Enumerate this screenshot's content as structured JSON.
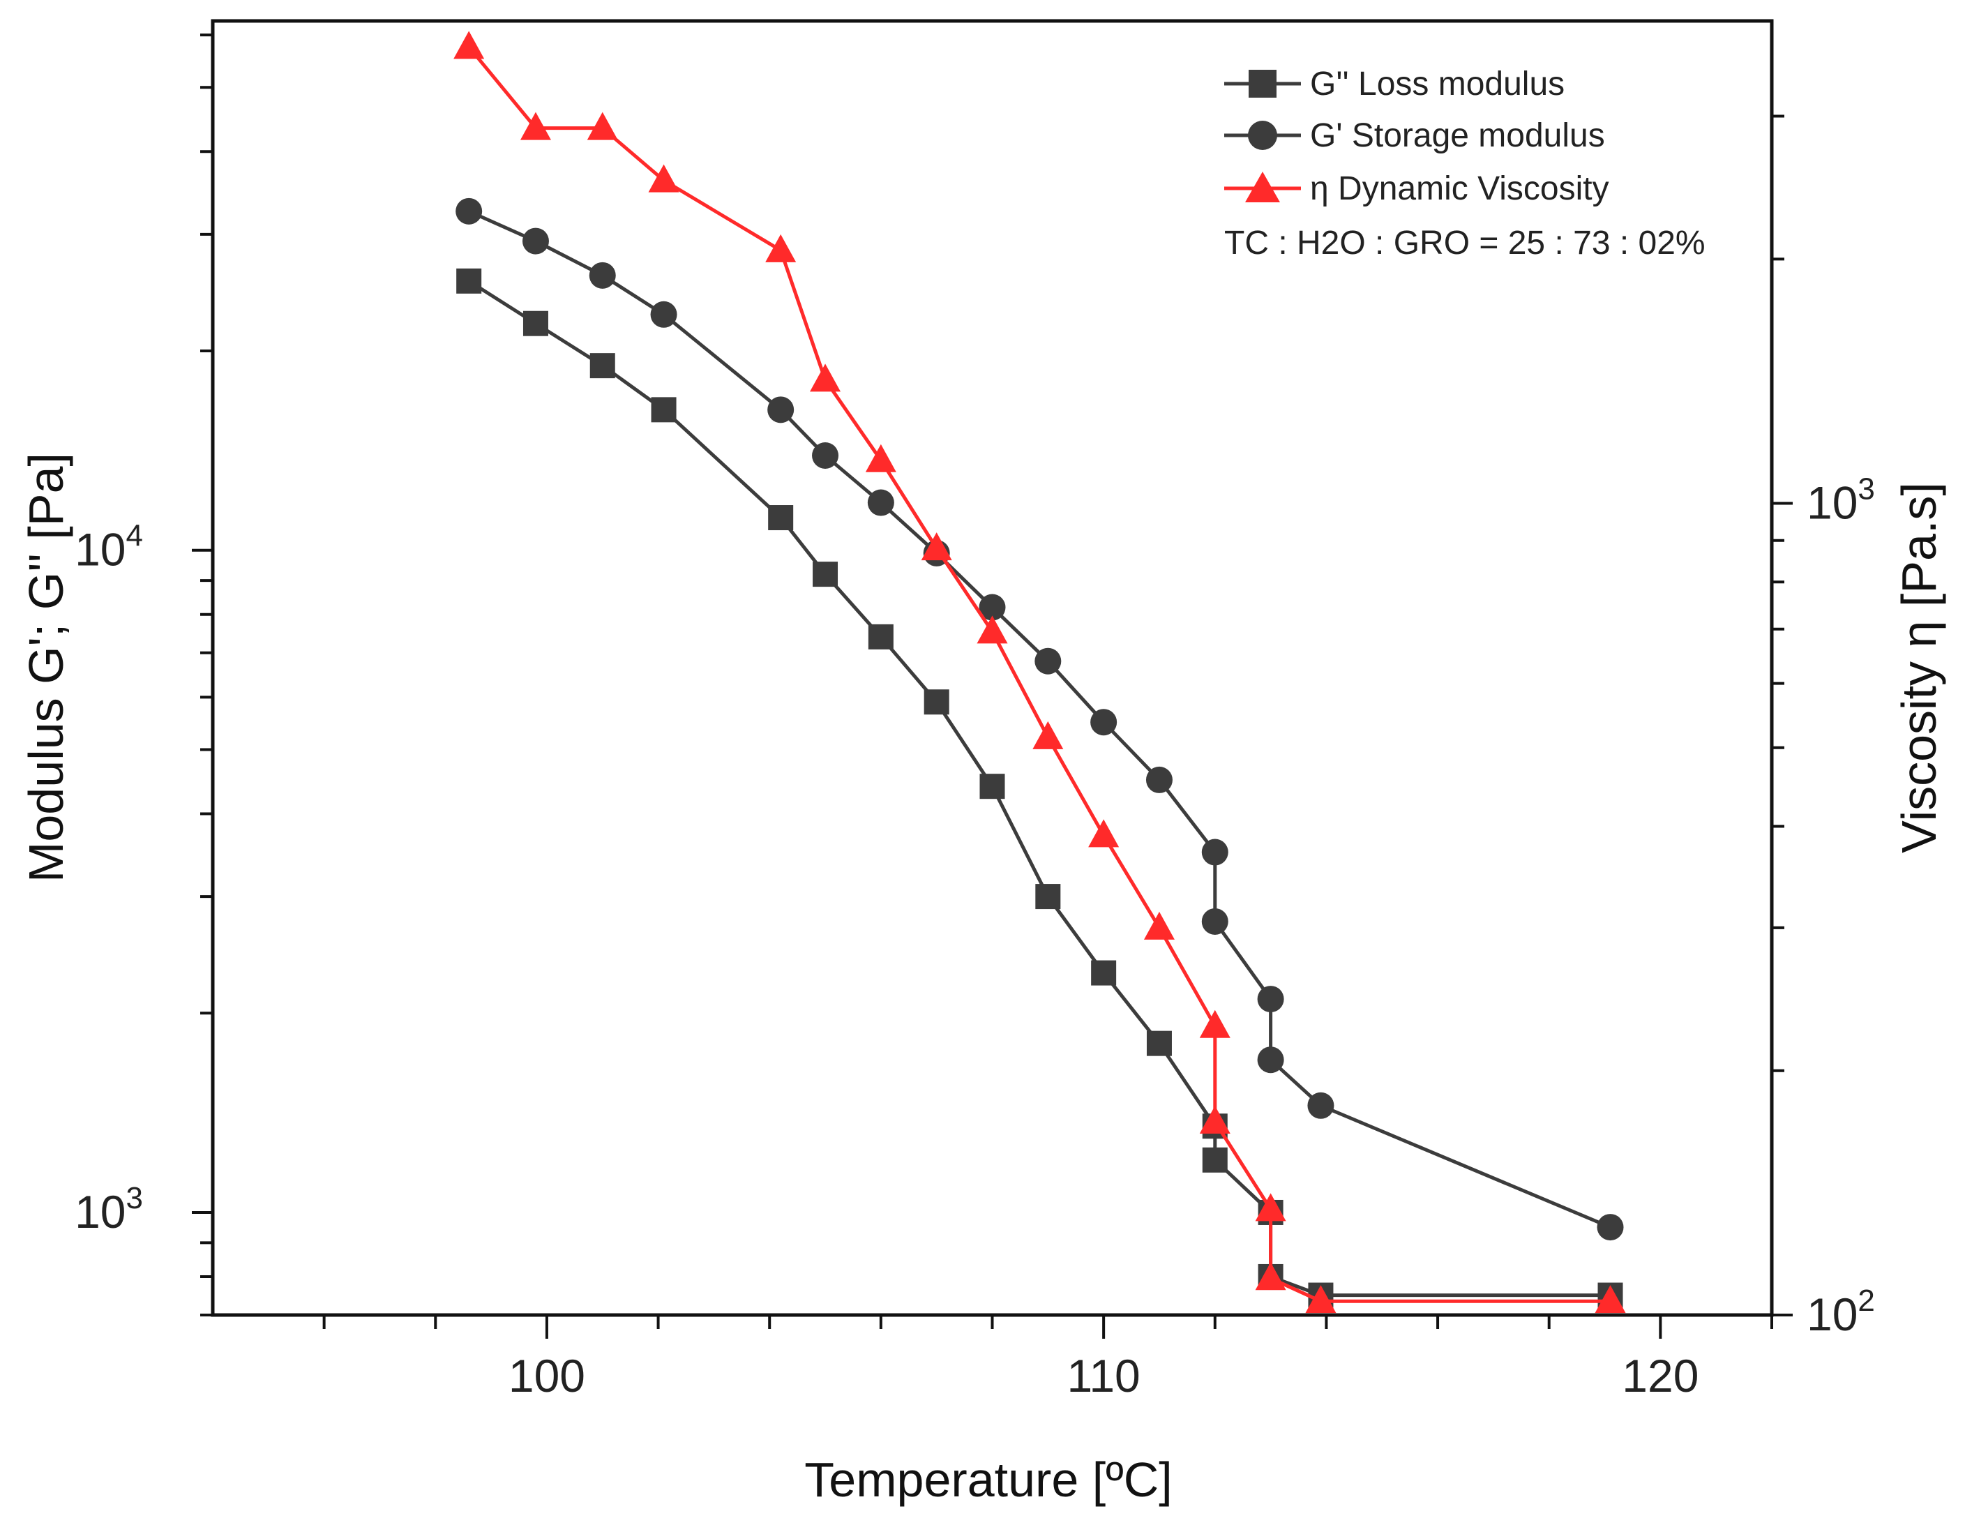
{
  "chart_data": {
    "type": "line",
    "xlabel": "Temperature [ºC]",
    "ylabel_left": "Modulus G'; G'' [Pa]",
    "ylabel_right": "Viscosity η  [Pa.s]",
    "xlim": [
      94,
      122
    ],
    "ylim_left": [
      700,
      63000
    ],
    "ylim_right": [
      100,
      3930
    ],
    "yscale": "log",
    "x_ticks": [
      100,
      110,
      120
    ],
    "x_tick_labels": [
      "100",
      "110",
      "120"
    ],
    "y_left_ticks": [
      {
        "value": 1000,
        "base": "10",
        "exp": "3"
      },
      {
        "value": 10000,
        "base": "10",
        "exp": "4"
      }
    ],
    "y_right_ticks": [
      {
        "value": 100,
        "base": "10",
        "exp": "2"
      },
      {
        "value": 1000,
        "base": "10",
        "exp": "3"
      }
    ],
    "annotation": "TC : H2O : GRO = 25 : 73 : 02%",
    "series": [
      {
        "name": "G''  Loss modulus",
        "axis": "left",
        "marker": "square",
        "color": "#3c3c3c",
        "x": [
          98.6,
          99.8,
          101.0,
          102.1,
          104.2,
          105.0,
          106.0,
          107.0,
          108.0,
          109.0,
          110.0,
          111.0,
          112.0,
          112.0,
          113.0,
          113.0,
          113.9,
          119.1
        ],
        "y": [
          25500,
          22000,
          19000,
          16300,
          11200,
          9200,
          7400,
          5900,
          4400,
          3000,
          2300,
          1800,
          1350,
          1200,
          1000,
          800,
          750,
          750
        ]
      },
      {
        "name": "G'   Storage modulus",
        "axis": "left",
        "marker": "circle",
        "color": "#3c3c3c",
        "x": [
          98.6,
          99.8,
          101.0,
          102.1,
          104.2,
          105.0,
          106.0,
          107.0,
          108.0,
          109.0,
          110.0,
          111.0,
          112.0,
          112.0,
          113.0,
          113.0,
          113.9,
          119.1
        ],
        "y": [
          32500,
          29300,
          26000,
          22700,
          16300,
          13900,
          11800,
          9900,
          8200,
          6800,
          5500,
          4500,
          3500,
          2750,
          2100,
          1700,
          1450,
          950
        ]
      },
      {
        "name": "η Dynamic Viscosity",
        "axis": "right",
        "marker": "triangle",
        "color": "#ff2a2a",
        "x": [
          98.6,
          99.8,
          101.0,
          102.1,
          104.2,
          105.0,
          106.0,
          107.0,
          108.0,
          109.0,
          110.0,
          111.0,
          112.0,
          112.0,
          113.0,
          113.0,
          113.9,
          119.1
        ],
        "y": [
          3650,
          2900,
          2900,
          2500,
          2050,
          1420,
          1130,
          880,
          695,
          515,
          390,
          300,
          227,
          173,
          135,
          111,
          104,
          104
        ]
      }
    ]
  }
}
